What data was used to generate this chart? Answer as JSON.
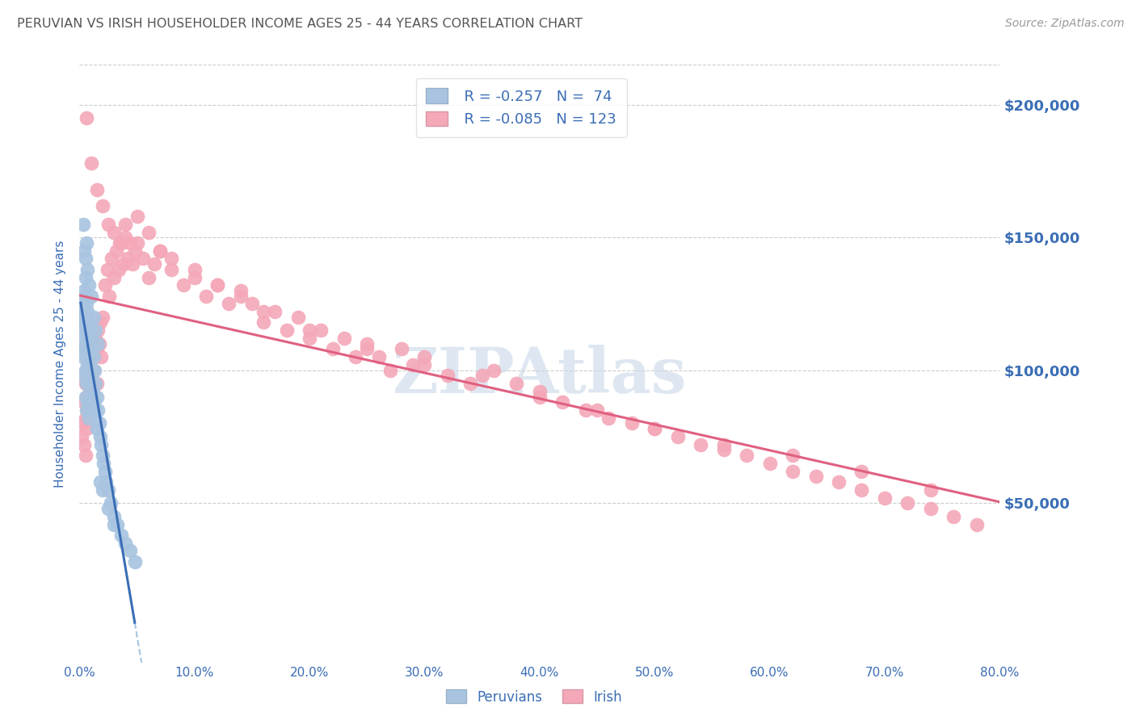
{
  "title": "PERUVIAN VS IRISH HOUSEHOLDER INCOME AGES 25 - 44 YEARS CORRELATION CHART",
  "source": "Source: ZipAtlas.com",
  "ylabel": "Householder Income Ages 25 - 44 years",
  "ytick_labels": [
    "$50,000",
    "$100,000",
    "$150,000",
    "$200,000"
  ],
  "ytick_values": [
    50000,
    100000,
    150000,
    200000
  ],
  "ymin": -10000,
  "ymax": 215000,
  "xmin": 0.0,
  "xmax": 0.8,
  "legend_blue_r": "R = -0.257",
  "legend_blue_n": "N =  74",
  "legend_pink_r": "R = -0.085",
  "legend_pink_n": "N = 123",
  "blue_color": "#a8c4e0",
  "pink_color": "#f4a8b8",
  "trendline_blue_color": "#3a6db5",
  "trendline_pink_color": "#e06080",
  "trendline_dash_color": "#a8c4e0",
  "axis_label_color": "#3a6db5",
  "title_color": "#555555",
  "watermark_color": "#c8d8e8",
  "background_color": "#ffffff",
  "peruvians_x": [
    0.001,
    0.002,
    0.002,
    0.003,
    0.003,
    0.003,
    0.004,
    0.004,
    0.004,
    0.004,
    0.005,
    0.005,
    0.005,
    0.005,
    0.005,
    0.005,
    0.006,
    0.006,
    0.006,
    0.006,
    0.006,
    0.007,
    0.007,
    0.007,
    0.007,
    0.008,
    0.008,
    0.008,
    0.008,
    0.009,
    0.009,
    0.009,
    0.01,
    0.01,
    0.01,
    0.011,
    0.011,
    0.012,
    0.012,
    0.013,
    0.013,
    0.014,
    0.015,
    0.015,
    0.016,
    0.017,
    0.018,
    0.019,
    0.02,
    0.021,
    0.022,
    0.023,
    0.025,
    0.027,
    0.03,
    0.033,
    0.036,
    0.04,
    0.044,
    0.048,
    0.003,
    0.004,
    0.005,
    0.006,
    0.007,
    0.008,
    0.01,
    0.012,
    0.014,
    0.016,
    0.018,
    0.02,
    0.025,
    0.03
  ],
  "peruvians_y": [
    115000,
    120000,
    108000,
    125000,
    118000,
    105000,
    130000,
    122000,
    112000,
    98000,
    135000,
    128000,
    118000,
    108000,
    100000,
    90000,
    125000,
    115000,
    105000,
    95000,
    85000,
    122000,
    112000,
    102000,
    88000,
    118000,
    108000,
    96000,
    82000,
    115000,
    105000,
    90000,
    112000,
    100000,
    85000,
    108000,
    92000,
    105000,
    88000,
    100000,
    85000,
    95000,
    90000,
    78000,
    85000,
    80000,
    75000,
    72000,
    68000,
    65000,
    62000,
    58000,
    55000,
    50000,
    45000,
    42000,
    38000,
    35000,
    32000,
    28000,
    155000,
    145000,
    142000,
    148000,
    138000,
    132000,
    128000,
    120000,
    115000,
    110000,
    58000,
    55000,
    48000,
    42000
  ],
  "irish_x": [
    0.002,
    0.003,
    0.004,
    0.004,
    0.005,
    0.005,
    0.005,
    0.006,
    0.006,
    0.007,
    0.007,
    0.008,
    0.008,
    0.009,
    0.009,
    0.01,
    0.01,
    0.011,
    0.011,
    0.012,
    0.012,
    0.013,
    0.014,
    0.015,
    0.015,
    0.016,
    0.017,
    0.018,
    0.019,
    0.02,
    0.022,
    0.024,
    0.026,
    0.028,
    0.03,
    0.032,
    0.034,
    0.036,
    0.038,
    0.04,
    0.042,
    0.044,
    0.046,
    0.048,
    0.05,
    0.055,
    0.06,
    0.065,
    0.07,
    0.08,
    0.09,
    0.1,
    0.11,
    0.12,
    0.13,
    0.14,
    0.15,
    0.16,
    0.17,
    0.18,
    0.19,
    0.2,
    0.21,
    0.22,
    0.23,
    0.24,
    0.25,
    0.26,
    0.27,
    0.28,
    0.29,
    0.3,
    0.32,
    0.34,
    0.36,
    0.38,
    0.4,
    0.42,
    0.44,
    0.46,
    0.48,
    0.5,
    0.52,
    0.54,
    0.56,
    0.58,
    0.6,
    0.62,
    0.64,
    0.66,
    0.68,
    0.7,
    0.72,
    0.74,
    0.76,
    0.78,
    0.01,
    0.015,
    0.02,
    0.025,
    0.03,
    0.035,
    0.04,
    0.05,
    0.06,
    0.07,
    0.08,
    0.1,
    0.12,
    0.14,
    0.16,
    0.2,
    0.25,
    0.3,
    0.35,
    0.4,
    0.45,
    0.5,
    0.56,
    0.62,
    0.68,
    0.74,
    0.006
  ],
  "irish_y": [
    75000,
    80000,
    88000,
    72000,
    95000,
    82000,
    68000,
    90000,
    78000,
    98000,
    85000,
    102000,
    88000,
    108000,
    92000,
    112000,
    95000,
    108000,
    88000,
    115000,
    100000,
    105000,
    112000,
    108000,
    95000,
    115000,
    110000,
    118000,
    105000,
    120000,
    132000,
    138000,
    128000,
    142000,
    135000,
    145000,
    138000,
    148000,
    140000,
    150000,
    142000,
    148000,
    140000,
    145000,
    148000,
    142000,
    135000,
    140000,
    145000,
    138000,
    132000,
    135000,
    128000,
    132000,
    125000,
    130000,
    125000,
    118000,
    122000,
    115000,
    120000,
    112000,
    115000,
    108000,
    112000,
    105000,
    110000,
    105000,
    100000,
    108000,
    102000,
    105000,
    98000,
    95000,
    100000,
    95000,
    92000,
    88000,
    85000,
    82000,
    80000,
    78000,
    75000,
    72000,
    70000,
    68000,
    65000,
    62000,
    60000,
    58000,
    55000,
    52000,
    50000,
    48000,
    45000,
    42000,
    178000,
    168000,
    162000,
    155000,
    152000,
    148000,
    155000,
    158000,
    152000,
    145000,
    142000,
    138000,
    132000,
    128000,
    122000,
    115000,
    108000,
    102000,
    98000,
    90000,
    85000,
    78000,
    72000,
    68000,
    62000,
    55000,
    195000
  ]
}
